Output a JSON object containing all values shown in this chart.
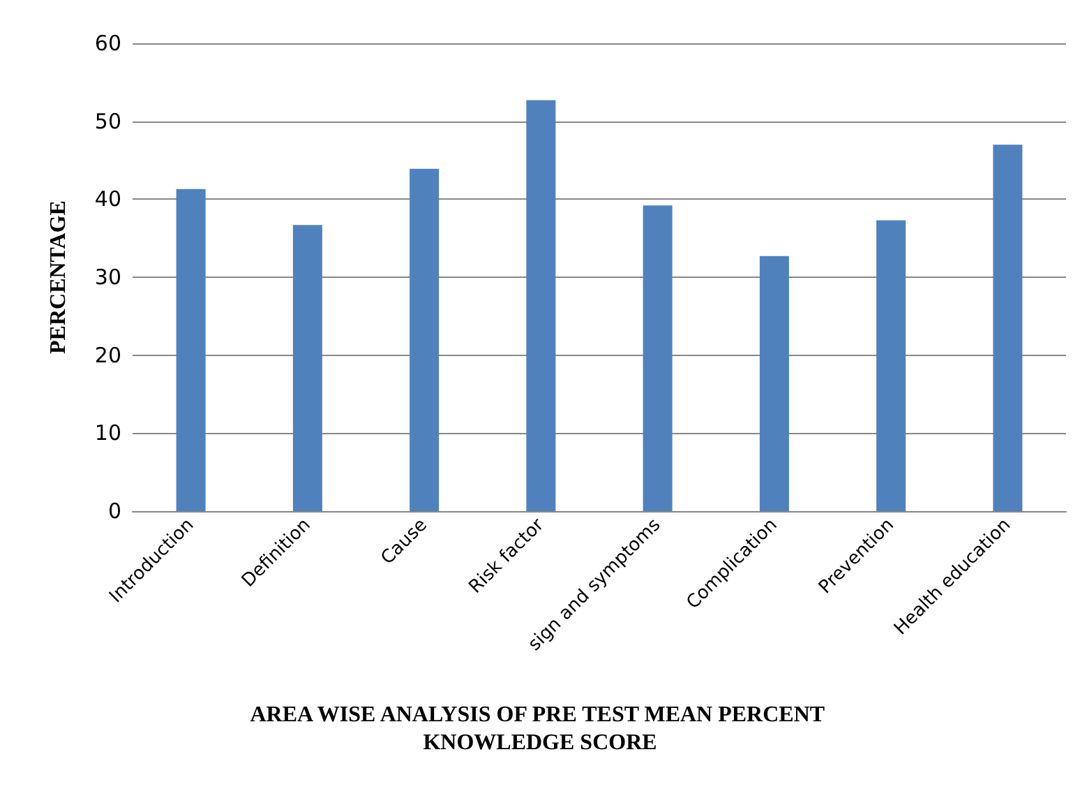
{
  "chart_data": {
    "type": "bar",
    "title": "AREA WISE ANALYSIS OF PRE TEST MEAN PERCENT KNOWLEDGE SCORE",
    "ylabel": "PERCENTAGE",
    "categories": [
      "Introduction",
      "Definition",
      "Cause",
      "Risk factor",
      "sign and symptoms",
      "Complication",
      "Prevention",
      "Health education"
    ],
    "values": [
      41.3,
      36.7,
      43.9,
      52.7,
      39.2,
      32.7,
      37.3,
      47
    ],
    "color": "#4f81bd",
    "ylim": [
      0,
      60
    ],
    "yticks": [
      0,
      10,
      20,
      30,
      40,
      50,
      60
    ],
    "grid": "y"
  }
}
